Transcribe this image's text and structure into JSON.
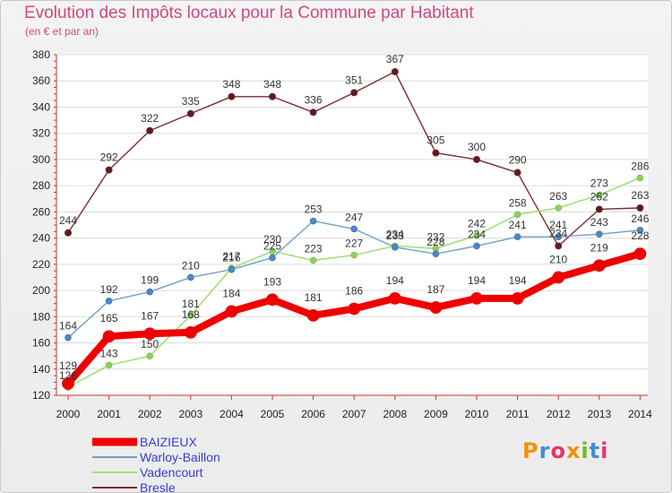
{
  "header": {
    "title": "Evolution des Impôts locaux pour la Commune par Habitant",
    "subtitle": "(en € et par an)"
  },
  "logo": {
    "text": "Proxiti",
    "colors": [
      "#f29200",
      "#3f8fd2",
      "#e8336c",
      "#f29200",
      "#6dbb2e",
      "#3f8fd2",
      "#e8336c"
    ]
  },
  "chart_data": {
    "type": "line",
    "title": "Evolution des Impôts locaux pour la Commune par Habitant",
    "subtitle": "(en € et par an)",
    "xlabel": "",
    "ylabel": "",
    "ylim": [
      120,
      380
    ],
    "yticks": [
      120,
      140,
      160,
      180,
      200,
      220,
      240,
      260,
      280,
      300,
      320,
      340,
      360,
      380
    ],
    "grid": "horizontal",
    "legend": "bottom-left",
    "categories": [
      "2000",
      "2001",
      "2002",
      "2003",
      "2004",
      "2005",
      "2006",
      "2007",
      "2008",
      "2009",
      "2010",
      "2011",
      "2012",
      "2013",
      "2014"
    ],
    "series": [
      {
        "name": "Bresle",
        "color": "#7b2c31",
        "values": [
          244,
          292,
          322,
          335,
          348,
          348,
          336,
          351,
          367,
          305,
          300,
          290,
          234,
          262,
          263
        ],
        "labels": [
          "244",
          "292",
          "322",
          "335",
          "348",
          "348",
          "336",
          "351",
          "367",
          "305",
          "300",
          "290",
          "234",
          "262",
          "263"
        ]
      },
      {
        "name": "Vadencourt",
        "color": "#a3df78",
        "values": [
          126,
          143,
          150,
          181,
          217,
          230,
          223,
          227,
          234,
          232,
          242,
          258,
          263,
          273,
          286
        ],
        "labels": [
          "126",
          "143",
          "150",
          "181",
          "217",
          "230",
          "223",
          "227",
          "234",
          "232",
          "242",
          "258",
          "263",
          "273",
          "286"
        ]
      },
      {
        "name": "Warloy-Baillon",
        "color": "#6f9fcc",
        "values": [
          164,
          192,
          199,
          210,
          216,
          225,
          253,
          247,
          233,
          228,
          234,
          241,
          241,
          243,
          246
        ],
        "labels": [
          "164",
          "192",
          "199",
          "210",
          "216",
          "225",
          "253",
          "247",
          "233",
          "228",
          "234",
          "241",
          "241",
          "243",
          "246"
        ]
      },
      {
        "name": "BAIZIEUX",
        "color": "#ee0000",
        "values": [
          129,
          165,
          167,
          168,
          184,
          193,
          181,
          186,
          194,
          187,
          194,
          194,
          210,
          219,
          228
        ],
        "labels": [
          "129",
          "165",
          "167",
          "168",
          "184",
          "193",
          "181",
          "186",
          "194",
          "187",
          "194",
          "194",
          "210",
          "219",
          "228"
        ]
      }
    ]
  },
  "legend": {
    "items": [
      {
        "label": "BAIZIEUX",
        "color": "#ee0000"
      },
      {
        "label": "Warloy-Baillon",
        "color": "#6f9fcc"
      },
      {
        "label": "Vadencourt",
        "color": "#a3df78"
      },
      {
        "label": "Bresle",
        "color": "#7b2c31"
      }
    ]
  }
}
